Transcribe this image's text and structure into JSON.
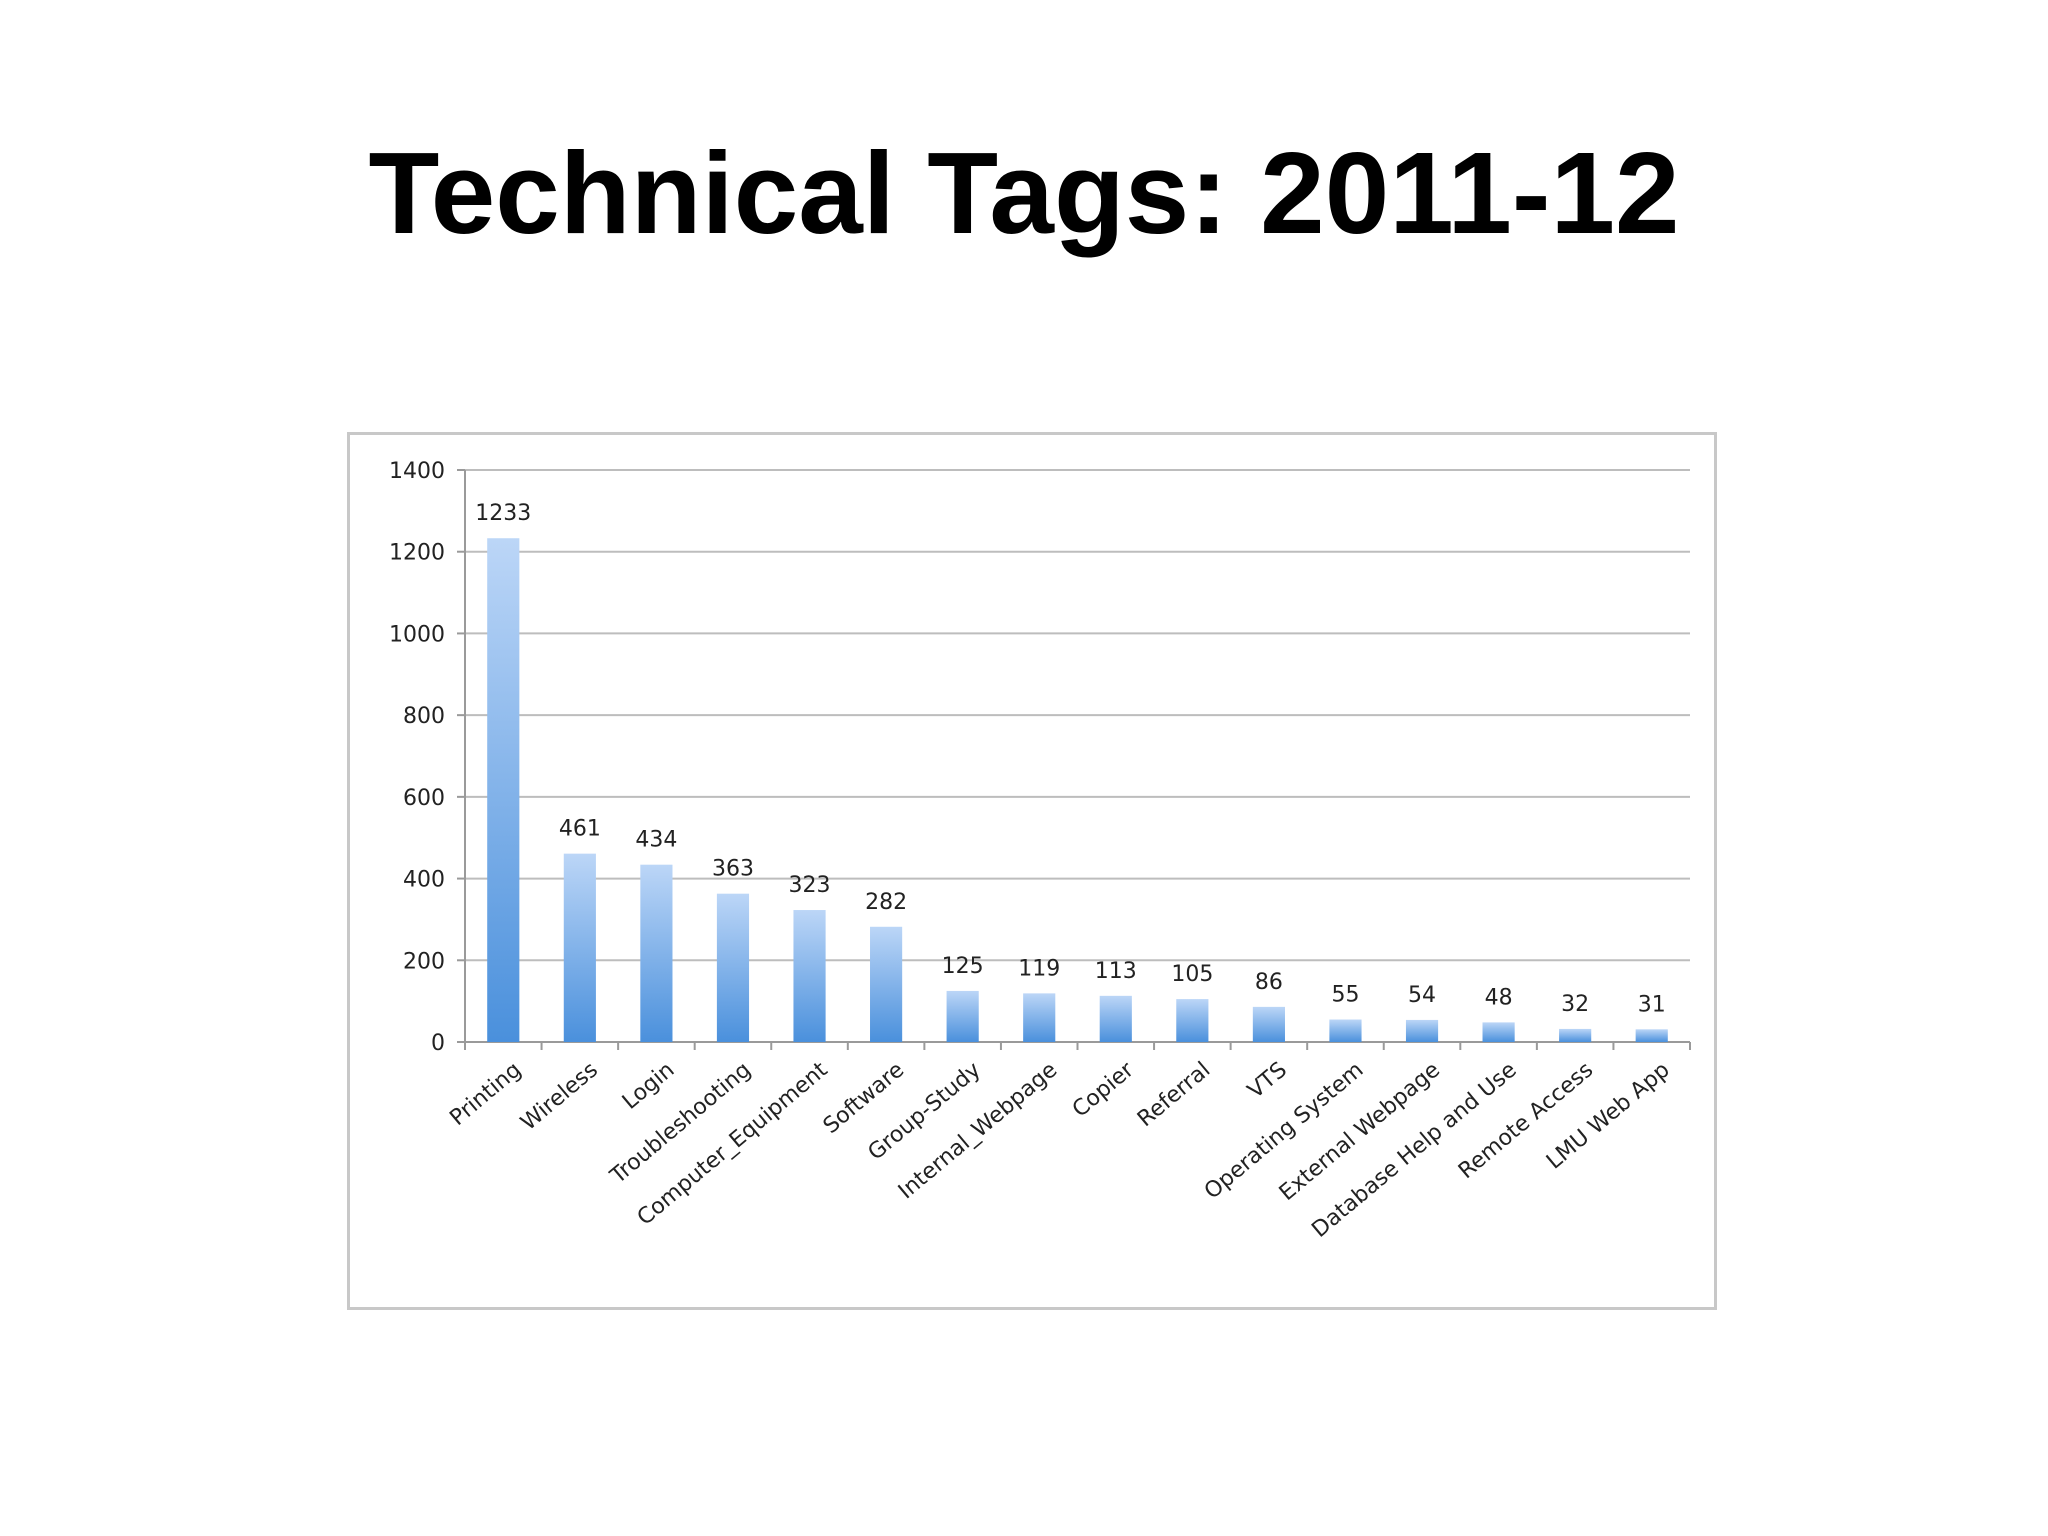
{
  "slide": {
    "title": "Technical Tags: 2011-12"
  },
  "colors": {
    "bar_top": "#bcd6f7",
    "bar_bottom": "#4a90dc",
    "grid": "#bdbdbd",
    "axis": "#9a9a9a"
  },
  "chart_data": {
    "type": "bar",
    "title": "",
    "xlabel": "",
    "ylabel": "",
    "ylim": [
      0,
      1400
    ],
    "yticks": [
      0,
      200,
      400,
      600,
      800,
      1000,
      1200,
      1400
    ],
    "grid": true,
    "legend": "none",
    "categories": [
      "Printing",
      "Wireless",
      "Login",
      "Troubleshooting",
      "Computer_Equipment",
      "Software",
      "Group-Study",
      "Internal_Webpage",
      "Copier",
      "Referral",
      "VTS",
      "Operating System",
      "External Webpage",
      "Database Help and Use",
      "Remote Access",
      "LMU Web App"
    ],
    "values": [
      1233,
      461,
      434,
      363,
      323,
      282,
      125,
      119,
      113,
      105,
      86,
      55,
      54,
      48,
      32,
      31
    ]
  }
}
